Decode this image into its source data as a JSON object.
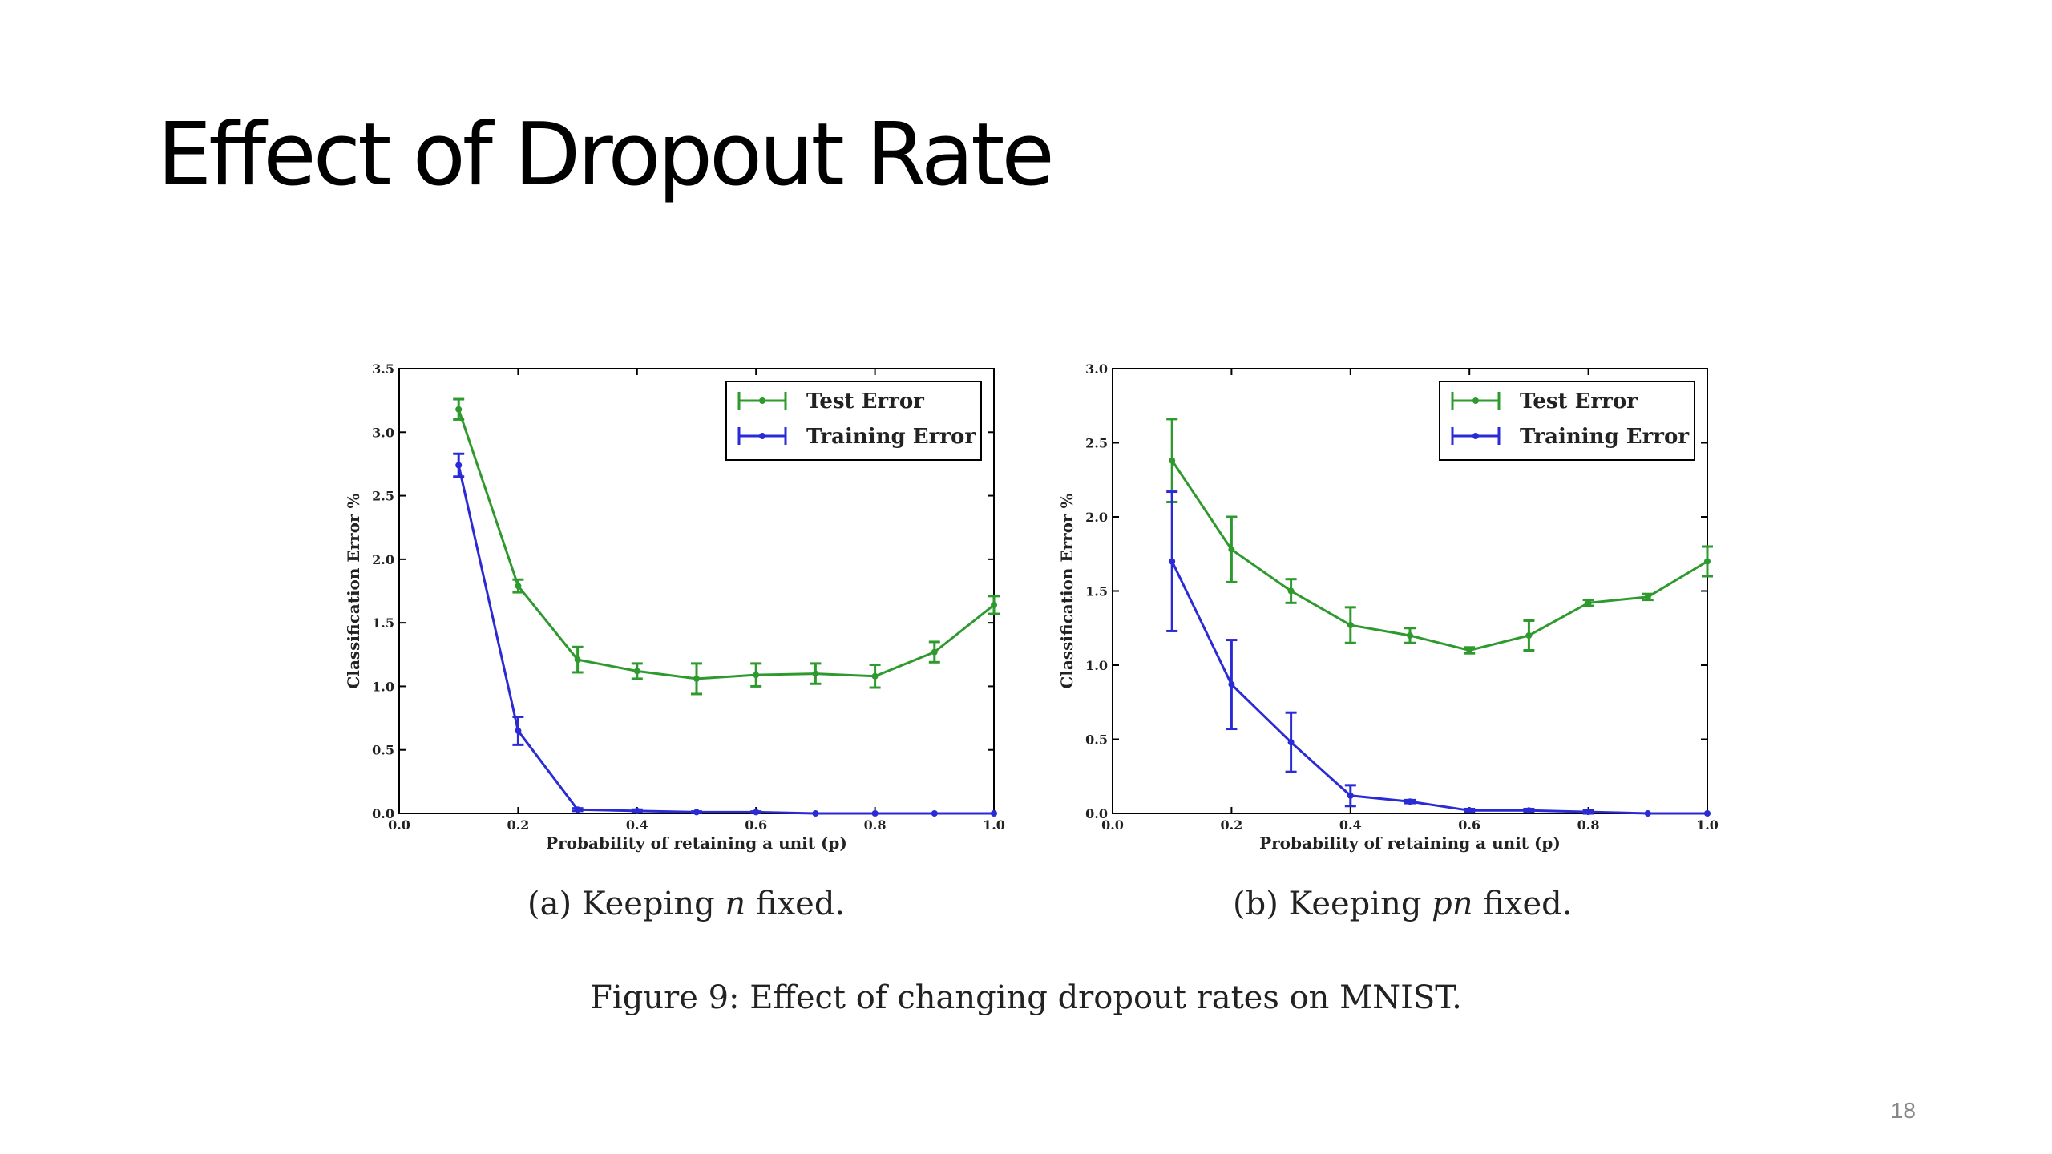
{
  "slide": {
    "title": "Effect of Dropout Rate",
    "figure_caption": "Figure 9: Effect of changing dropout rates on MNIST.",
    "page_number": "18"
  },
  "colors": {
    "test": "#2e9a2e",
    "train": "#2a2ad6"
  },
  "chart_data": [
    {
      "type": "line",
      "caption_prefix": "(a) Keeping",
      "caption_math": "n",
      "caption_suffix": "fixed.",
      "xlabel": "Probability of retaining a unit (p)",
      "ylabel": "Classification Error %",
      "xlim": [
        0.0,
        1.0
      ],
      "ylim": [
        0.0,
        3.5
      ],
      "xticks": [
        "0.0",
        "0.2",
        "0.4",
        "0.6",
        "0.8",
        "1.0"
      ],
      "yticks": [
        "0.0",
        "0.5",
        "1.0",
        "1.5",
        "2.0",
        "2.5",
        "3.0",
        "3.5"
      ],
      "legend_position": "top-right",
      "series": [
        {
          "name": "Test Error",
          "color": "#2e9a2e",
          "x": [
            0.1,
            0.2,
            0.3,
            0.4,
            0.5,
            0.6,
            0.7,
            0.8,
            0.9,
            1.0
          ],
          "y": [
            3.18,
            1.79,
            1.21,
            1.12,
            1.06,
            1.09,
            1.1,
            1.08,
            1.27,
            1.64
          ],
          "err": [
            0.08,
            0.05,
            0.1,
            0.06,
            0.12,
            0.09,
            0.08,
            0.09,
            0.08,
            0.07
          ]
        },
        {
          "name": "Training Error",
          "color": "#2a2ad6",
          "x": [
            0.1,
            0.2,
            0.3,
            0.4,
            0.5,
            0.6,
            0.7,
            0.8,
            0.9,
            1.0
          ],
          "y": [
            2.74,
            0.65,
            0.03,
            0.02,
            0.01,
            0.01,
            0.0,
            0.0,
            0.0,
            0.0
          ],
          "err": [
            0.09,
            0.11,
            0.01,
            0.01,
            0.005,
            0.005,
            0.0,
            0.0,
            0.0,
            0.0
          ]
        }
      ]
    },
    {
      "type": "line",
      "caption_prefix": "(b) Keeping",
      "caption_math": "pn",
      "caption_suffix": "fixed.",
      "xlabel": "Probability of retaining a unit (p)",
      "ylabel": "Classification Error %",
      "xlim": [
        0.0,
        1.0
      ],
      "ylim": [
        0.0,
        3.0
      ],
      "xticks": [
        "0.0",
        "0.2",
        "0.4",
        "0.6",
        "0.8",
        "1.0"
      ],
      "yticks": [
        "0.0",
        "0.5",
        "1.0",
        "1.5",
        "2.0",
        "2.5",
        "3.0"
      ],
      "legend_position": "top-right",
      "series": [
        {
          "name": "Test Error",
          "color": "#2e9a2e",
          "x": [
            0.1,
            0.2,
            0.3,
            0.4,
            0.5,
            0.6,
            0.7,
            0.8,
            0.9,
            1.0
          ],
          "y": [
            2.38,
            1.78,
            1.5,
            1.27,
            1.2,
            1.1,
            1.2,
            1.42,
            1.46,
            1.7
          ],
          "err": [
            0.28,
            0.22,
            0.08,
            0.12,
            0.05,
            0.02,
            0.1,
            0.02,
            0.02,
            0.1
          ]
        },
        {
          "name": "Training Error",
          "color": "#2a2ad6",
          "x": [
            0.1,
            0.2,
            0.3,
            0.4,
            0.5,
            0.6,
            0.7,
            0.8,
            0.9,
            1.0
          ],
          "y": [
            1.7,
            0.87,
            0.48,
            0.12,
            0.08,
            0.02,
            0.02,
            0.01,
            0.0,
            0.0
          ],
          "err": [
            0.47,
            0.3,
            0.2,
            0.07,
            0.01,
            0.01,
            0.01,
            0.01,
            0.0,
            0.0
          ]
        }
      ]
    }
  ]
}
